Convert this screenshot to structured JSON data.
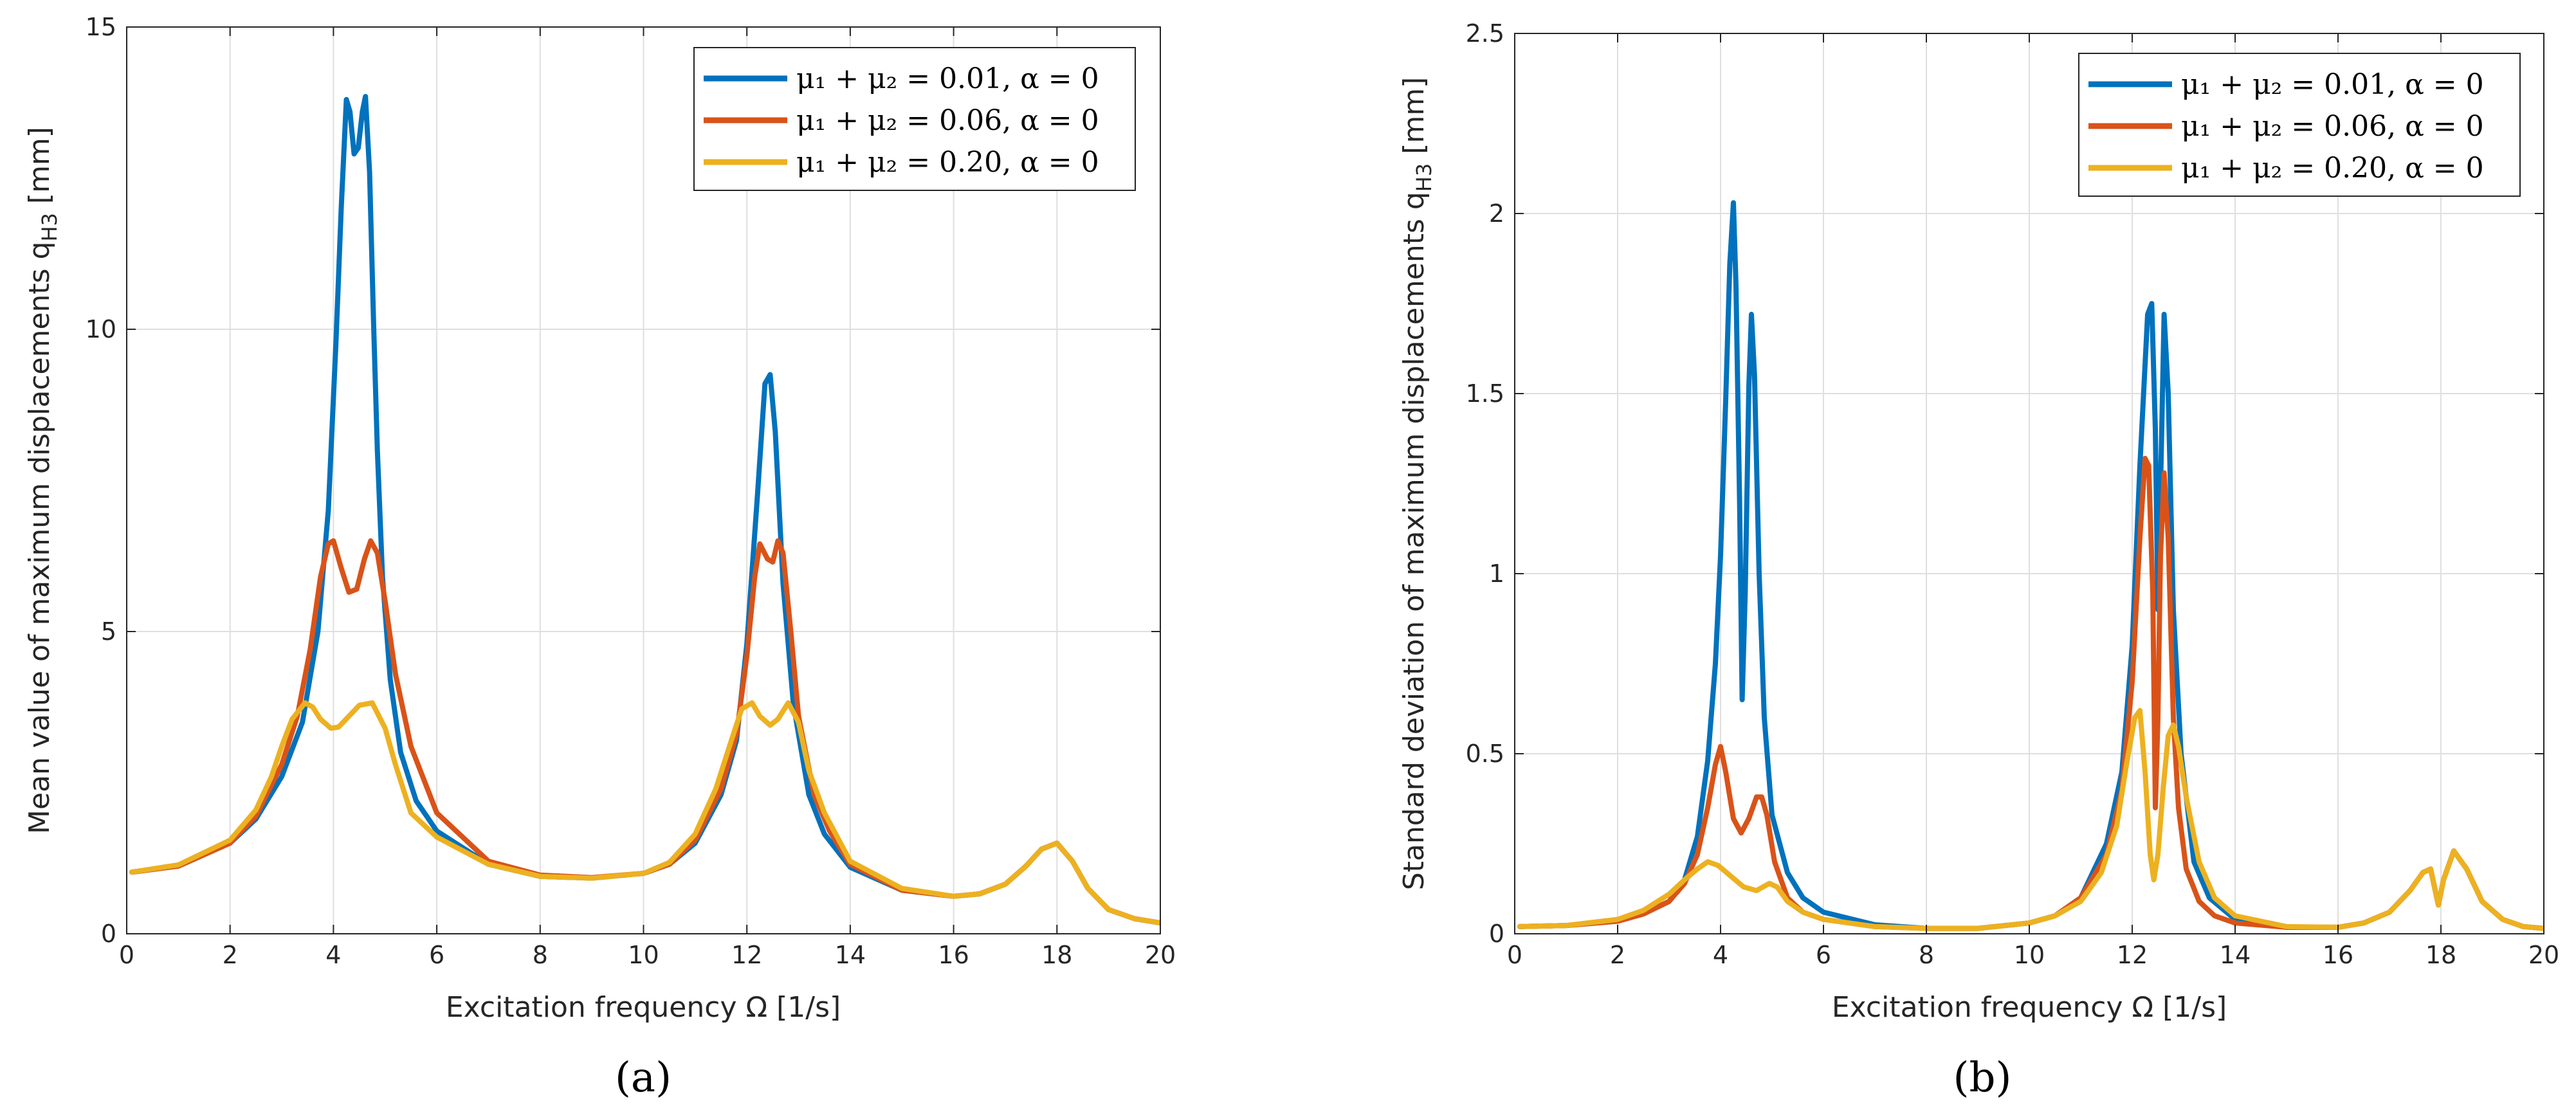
{
  "colors": {
    "blue": "#0072BD",
    "red": "#D95319",
    "yellow": "#EDB120",
    "grid": "#DFDFDF",
    "axis": "#262626"
  },
  "legend_entries": [
    "μ₁ + μ₂ = 0.01, α = 0",
    "μ₁ + μ₂ = 0.06, α = 0",
    "μ₁ + μ₂ = 0.20, α = 0"
  ],
  "chart_data": [
    {
      "id": "a",
      "type": "line",
      "caption": "(a)",
      "xlabel": "Excitation frequency Ω [1/s]",
      "ylabel": "Mean value of maximum displacements q",
      "ylabel_sub": "H3",
      "ylabel_unit": " [mm]",
      "xlim": [
        0,
        20
      ],
      "ylim": [
        0,
        15
      ],
      "xticks": [
        0,
        2,
        4,
        6,
        8,
        10,
        12,
        14,
        16,
        18,
        20
      ],
      "yticks": [
        0,
        5,
        10,
        15
      ],
      "ytick_labels": [
        "0",
        "5",
        "10",
        "15"
      ],
      "legend_position": "top-right",
      "series": [
        {
          "name": "μ₁ + μ₂ = 0.01, α = 0",
          "color": "blue",
          "x": [
            0.1,
            1.0,
            2.0,
            2.5,
            3.0,
            3.4,
            3.7,
            3.9,
            4.05,
            4.15,
            4.25,
            4.32,
            4.4,
            4.48,
            4.56,
            4.62,
            4.7,
            4.78,
            4.85,
            4.95,
            5.1,
            5.3,
            5.6,
            6.0,
            7.0,
            8.0,
            9.0,
            10.0,
            10.5,
            11.0,
            11.5,
            11.8,
            12.0,
            12.2,
            12.35,
            12.45,
            12.55,
            12.7,
            12.9,
            13.2,
            13.5,
            14.0,
            15.0,
            16.0,
            16.5,
            17.0,
            17.4,
            17.7,
            18.0,
            18.3,
            18.6,
            19.0,
            19.5,
            20.0
          ],
          "y": [
            1.02,
            1.12,
            1.5,
            1.9,
            2.6,
            3.5,
            5.0,
            7.0,
            9.8,
            12.0,
            13.8,
            13.6,
            12.9,
            13.0,
            13.6,
            13.85,
            12.6,
            10.0,
            8.0,
            5.9,
            4.2,
            3.0,
            2.2,
            1.7,
            1.15,
            0.95,
            0.92,
            1.0,
            1.15,
            1.5,
            2.3,
            3.2,
            4.8,
            7.2,
            9.1,
            9.25,
            8.3,
            5.8,
            3.8,
            2.3,
            1.65,
            1.1,
            0.72,
            0.62,
            0.66,
            0.82,
            1.12,
            1.4,
            1.5,
            1.2,
            0.75,
            0.4,
            0.25,
            0.18
          ]
        },
        {
          "name": "μ₁ + μ₂ = 0.06, α = 0",
          "color": "red",
          "x": [
            0.1,
            1.0,
            2.0,
            2.5,
            3.0,
            3.3,
            3.55,
            3.75,
            3.9,
            4.0,
            4.15,
            4.3,
            4.45,
            4.6,
            4.72,
            4.85,
            5.0,
            5.2,
            5.5,
            6.0,
            7.0,
            8.0,
            9.0,
            10.0,
            10.5,
            11.0,
            11.5,
            11.8,
            12.0,
            12.15,
            12.25,
            12.4,
            12.5,
            12.6,
            12.7,
            12.85,
            13.0,
            13.3,
            13.6,
            14.0,
            15.0,
            16.0,
            16.5,
            17.0,
            17.4,
            17.7,
            18.0,
            18.3,
            18.6,
            19.0,
            19.5,
            20.0
          ],
          "y": [
            1.02,
            1.12,
            1.5,
            1.95,
            2.8,
            3.6,
            4.7,
            5.9,
            6.45,
            6.5,
            6.05,
            5.65,
            5.7,
            6.2,
            6.5,
            6.3,
            5.5,
            4.3,
            3.1,
            2.0,
            1.2,
            0.97,
            0.93,
            1.0,
            1.15,
            1.55,
            2.4,
            3.3,
            4.6,
            5.9,
            6.45,
            6.2,
            6.15,
            6.5,
            6.3,
            5.0,
            3.6,
            2.3,
            1.7,
            1.15,
            0.72,
            0.62,
            0.66,
            0.82,
            1.12,
            1.4,
            1.5,
            1.2,
            0.75,
            0.4,
            0.25,
            0.18
          ]
        },
        {
          "name": "μ₁ + μ₂ = 0.20, α = 0",
          "color": "yellow",
          "x": [
            0.1,
            1.0,
            2.0,
            2.5,
            2.8,
            3.0,
            3.2,
            3.45,
            3.6,
            3.75,
            3.95,
            4.1,
            4.3,
            4.5,
            4.75,
            5.0,
            5.2,
            5.5,
            6.0,
            7.0,
            8.0,
            9.0,
            10.0,
            10.5,
            11.0,
            11.4,
            11.7,
            11.9,
            12.1,
            12.25,
            12.45,
            12.6,
            12.8,
            13.0,
            13.2,
            13.5,
            14.0,
            15.0,
            16.0,
            16.5,
            17.0,
            17.4,
            17.7,
            18.0,
            18.3,
            18.6,
            19.0,
            19.5,
            20.0
          ],
          "y": [
            1.02,
            1.14,
            1.55,
            2.05,
            2.6,
            3.1,
            3.55,
            3.82,
            3.75,
            3.55,
            3.4,
            3.42,
            3.6,
            3.78,
            3.82,
            3.4,
            2.8,
            2.0,
            1.6,
            1.15,
            0.95,
            0.92,
            1.0,
            1.18,
            1.65,
            2.4,
            3.2,
            3.72,
            3.82,
            3.6,
            3.45,
            3.55,
            3.82,
            3.5,
            2.7,
            2.0,
            1.2,
            0.75,
            0.62,
            0.66,
            0.82,
            1.12,
            1.4,
            1.5,
            1.2,
            0.75,
            0.4,
            0.25,
            0.18
          ]
        }
      ]
    },
    {
      "id": "b",
      "type": "line",
      "caption": "(b)",
      "xlabel": "Excitation frequency Ω [1/s]",
      "ylabel": "Standard deviation of maximum displacements q",
      "ylabel_sub": "H3",
      "ylabel_unit": " [mm]",
      "xlim": [
        0,
        20
      ],
      "ylim": [
        0,
        2.5
      ],
      "xticks": [
        0,
        2,
        4,
        6,
        8,
        10,
        12,
        14,
        16,
        18,
        20
      ],
      "yticks": [
        0,
        0.5,
        1,
        1.5,
        2,
        2.5
      ],
      "ytick_labels": [
        "0",
        "0.5",
        "1",
        "1.5",
        "2",
        "2.5"
      ],
      "legend_position": "top-right",
      "series": [
        {
          "name": "μ₁ + μ₂ = 0.01, α = 0",
          "color": "blue",
          "x": [
            0.1,
            1.0,
            2.0,
            2.5,
            3.0,
            3.3,
            3.55,
            3.75,
            3.9,
            4.0,
            4.1,
            4.18,
            4.25,
            4.3,
            4.37,
            4.42,
            4.48,
            4.55,
            4.6,
            4.66,
            4.75,
            4.85,
            5.0,
            5.3,
            5.6,
            6.0,
            7.0,
            8.0,
            9.0,
            10.0,
            10.5,
            11.0,
            11.5,
            11.8,
            12.0,
            12.15,
            12.3,
            12.38,
            12.45,
            12.5,
            12.56,
            12.62,
            12.7,
            12.8,
            12.95,
            13.2,
            13.5,
            14.0,
            15.0,
            16.0,
            16.5,
            17.0,
            17.4,
            17.65,
            17.8,
            17.95,
            18.05,
            18.25,
            18.5,
            18.8,
            19.2,
            19.6,
            20.0
          ],
          "y": [
            0.02,
            0.023,
            0.035,
            0.055,
            0.09,
            0.15,
            0.27,
            0.48,
            0.75,
            1.05,
            1.48,
            1.86,
            2.03,
            1.8,
            1.2,
            0.65,
            0.95,
            1.52,
            1.72,
            1.55,
            1.0,
            0.6,
            0.33,
            0.17,
            0.1,
            0.06,
            0.025,
            0.015,
            0.015,
            0.03,
            0.05,
            0.1,
            0.25,
            0.45,
            0.8,
            1.3,
            1.72,
            1.75,
            1.4,
            0.9,
            1.3,
            1.72,
            1.5,
            0.9,
            0.5,
            0.2,
            0.1,
            0.04,
            0.018,
            0.018,
            0.03,
            0.06,
            0.12,
            0.17,
            0.18,
            0.08,
            0.15,
            0.23,
            0.18,
            0.09,
            0.04,
            0.02,
            0.015
          ]
        },
        {
          "name": "μ₁ + μ₂ = 0.06, α = 0",
          "color": "red",
          "x": [
            0.1,
            1.0,
            2.0,
            2.5,
            3.0,
            3.3,
            3.55,
            3.75,
            3.9,
            4.0,
            4.1,
            4.25,
            4.4,
            4.55,
            4.7,
            4.8,
            4.9,
            5.05,
            5.3,
            5.6,
            6.0,
            7.0,
            8.0,
            9.0,
            10.0,
            10.5,
            11.0,
            11.5,
            11.8,
            12.0,
            12.15,
            12.25,
            12.32,
            12.4,
            12.45,
            12.5,
            12.55,
            12.62,
            12.7,
            12.8,
            12.9,
            13.05,
            13.3,
            13.6,
            14.0,
            15.0,
            16.0,
            16.5,
            17.0,
            17.4,
            17.65,
            17.8,
            17.95,
            18.05,
            18.25,
            18.5,
            18.8,
            19.2,
            19.6,
            20.0
          ],
          "y": [
            0.02,
            0.023,
            0.035,
            0.055,
            0.09,
            0.14,
            0.22,
            0.35,
            0.47,
            0.52,
            0.45,
            0.32,
            0.28,
            0.32,
            0.38,
            0.38,
            0.33,
            0.2,
            0.1,
            0.06,
            0.04,
            0.02,
            0.015,
            0.015,
            0.03,
            0.05,
            0.1,
            0.22,
            0.4,
            0.7,
            1.1,
            1.32,
            1.3,
            0.95,
            0.35,
            0.6,
            1.05,
            1.28,
            1.1,
            0.6,
            0.35,
            0.18,
            0.09,
            0.05,
            0.03,
            0.018,
            0.018,
            0.03,
            0.06,
            0.12,
            0.17,
            0.18,
            0.08,
            0.15,
            0.23,
            0.18,
            0.09,
            0.04,
            0.02,
            0.015
          ]
        },
        {
          "name": "μ₁ + μ₂ = 0.20, α = 0",
          "color": "yellow",
          "x": [
            0.1,
            1.0,
            2.0,
            2.5,
            3.0,
            3.3,
            3.55,
            3.75,
            3.95,
            4.2,
            4.45,
            4.7,
            4.95,
            5.1,
            5.3,
            5.6,
            6.0,
            7.0,
            8.0,
            9.0,
            10.0,
            10.5,
            11.0,
            11.4,
            11.7,
            11.9,
            12.05,
            12.15,
            12.25,
            12.35,
            12.42,
            12.5,
            12.6,
            12.7,
            12.8,
            12.9,
            13.05,
            13.3,
            13.6,
            14.0,
            15.0,
            16.0,
            16.5,
            17.0,
            17.4,
            17.65,
            17.8,
            17.95,
            18.05,
            18.25,
            18.5,
            18.8,
            19.2,
            19.6,
            20.0
          ],
          "y": [
            0.02,
            0.023,
            0.04,
            0.065,
            0.11,
            0.15,
            0.18,
            0.2,
            0.19,
            0.16,
            0.13,
            0.12,
            0.14,
            0.13,
            0.09,
            0.06,
            0.04,
            0.02,
            0.015,
            0.015,
            0.03,
            0.05,
            0.09,
            0.17,
            0.3,
            0.48,
            0.6,
            0.62,
            0.45,
            0.22,
            0.15,
            0.22,
            0.4,
            0.55,
            0.58,
            0.52,
            0.38,
            0.2,
            0.1,
            0.05,
            0.02,
            0.018,
            0.03,
            0.06,
            0.12,
            0.17,
            0.18,
            0.08,
            0.15,
            0.23,
            0.18,
            0.09,
            0.04,
            0.02,
            0.015
          ]
        }
      ]
    }
  ]
}
